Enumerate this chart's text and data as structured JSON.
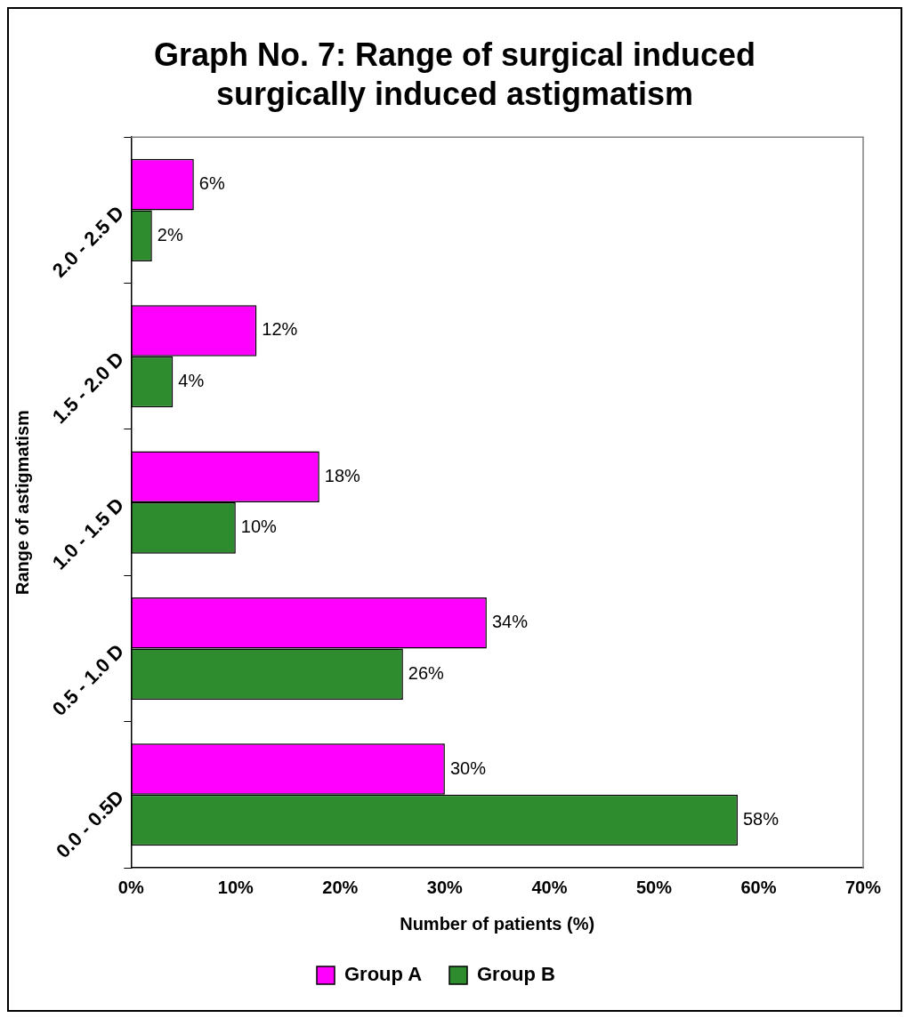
{
  "chart_data": {
    "type": "bar",
    "orientation": "horizontal",
    "title": "Graph No. 7: Range of surgical induced surgically induced astigmatism",
    "xlabel": "Number of patients (%)",
    "ylabel": "Range of astigmatism",
    "categories": [
      "2.0 - 2.5 D",
      "1.5 - 2.0 D",
      "1.0 - 1.5 D",
      "0.5 - 1.0 D",
      "0.0 - 0.5D"
    ],
    "series": [
      {
        "name": "Group A",
        "color": "#ff00ff",
        "values": [
          6,
          12,
          18,
          34,
          30
        ],
        "value_labels": [
          "6%",
          "12%",
          "18%",
          "34%",
          "30%"
        ]
      },
      {
        "name": "Group B",
        "color": "#2e8b2e",
        "values": [
          2,
          4,
          10,
          26,
          58
        ],
        "value_labels": [
          "2%",
          "4%",
          "10%",
          "26%",
          "58%"
        ]
      }
    ],
    "xlim": [
      0,
      70
    ],
    "xticks": [
      {
        "value": 0,
        "label": "0%"
      },
      {
        "value": 10,
        "label": "10%"
      },
      {
        "value": 20,
        "label": "20%"
      },
      {
        "value": 30,
        "label": "30%"
      },
      {
        "value": 40,
        "label": "40%"
      },
      {
        "value": 50,
        "label": "50%"
      },
      {
        "value": 60,
        "label": "60%"
      },
      {
        "value": 70,
        "label": "70%"
      }
    ],
    "grid": false,
    "legend": "bottom"
  }
}
